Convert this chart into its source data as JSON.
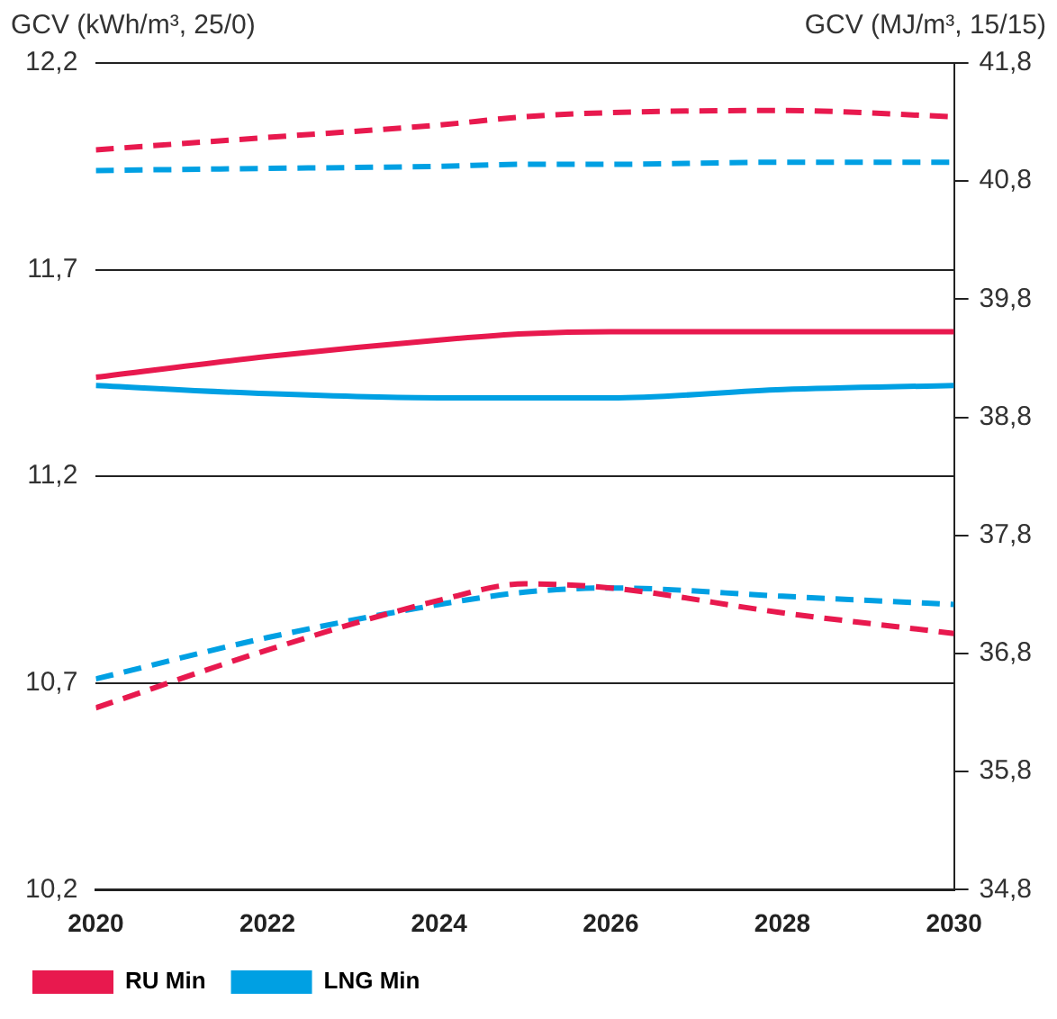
{
  "chart_data": {
    "type": "line",
    "ylabel": "GCV (kWh/m³, 25/0)",
    "y2label": "GCV (MJ/m³, 15/15)",
    "xlim": [
      2020,
      2030
    ],
    "xticks": [
      2020,
      2022,
      2024,
      2026,
      2028,
      2030
    ],
    "ylim": [
      10.2,
      12.2
    ],
    "yticks": [
      {
        "value": 10.2,
        "label": "10,2"
      },
      {
        "value": 10.7,
        "label": "10,7"
      },
      {
        "value": 11.2,
        "label": "11,2"
      },
      {
        "value": 11.7,
        "label": "11,7"
      },
      {
        "value": 12.2,
        "label": "12,2"
      }
    ],
    "y2lim": [
      34.8,
      41.8
    ],
    "y2ticks": [
      {
        "value": 34.8,
        "label": "34,8"
      },
      {
        "value": 35.8,
        "label": "35,8"
      },
      {
        "value": 36.8,
        "label": "36,8"
      },
      {
        "value": 37.8,
        "label": "37,8"
      },
      {
        "value": 38.8,
        "label": "38,8"
      },
      {
        "value": 39.8,
        "label": "39,8"
      },
      {
        "value": 40.8,
        "label": "40,8"
      },
      {
        "value": 41.8,
        "label": "41,8"
      }
    ],
    "grid": "y",
    "legend": "bottom left",
    "marker": "none",
    "x": [
      2020,
      2022,
      2024,
      2025,
      2026,
      2028,
      2030
    ],
    "series": [
      {
        "color": "#e8194e",
        "line_style": "dashed",
        "values": [
          11.99,
          12.02,
          12.05,
          12.07,
          12.08,
          12.085,
          12.07
        ]
      },
      {
        "color": "#00a0e3",
        "line_style": "dashed",
        "values": [
          11.94,
          11.945,
          11.95,
          11.955,
          11.955,
          11.96,
          11.96
        ]
      },
      {
        "name": "RU Min",
        "color": "#e8194e",
        "line_style": "solid",
        "values": [
          11.44,
          11.49,
          11.53,
          11.545,
          11.55,
          11.55,
          11.55
        ]
      },
      {
        "name": "LNG Min",
        "color": "#00a0e3",
        "line_style": "solid",
        "values": [
          11.42,
          11.4,
          11.39,
          11.39,
          11.39,
          11.41,
          11.42
        ]
      },
      {
        "color": "#e8194e",
        "line_style": "dashed",
        "values": [
          10.64,
          10.78,
          10.9,
          10.94,
          10.93,
          10.87,
          10.82
        ]
      },
      {
        "color": "#00a0e3",
        "line_style": "dashed",
        "values": [
          10.71,
          10.81,
          10.89,
          10.92,
          10.93,
          10.91,
          10.89
        ]
      }
    ]
  }
}
